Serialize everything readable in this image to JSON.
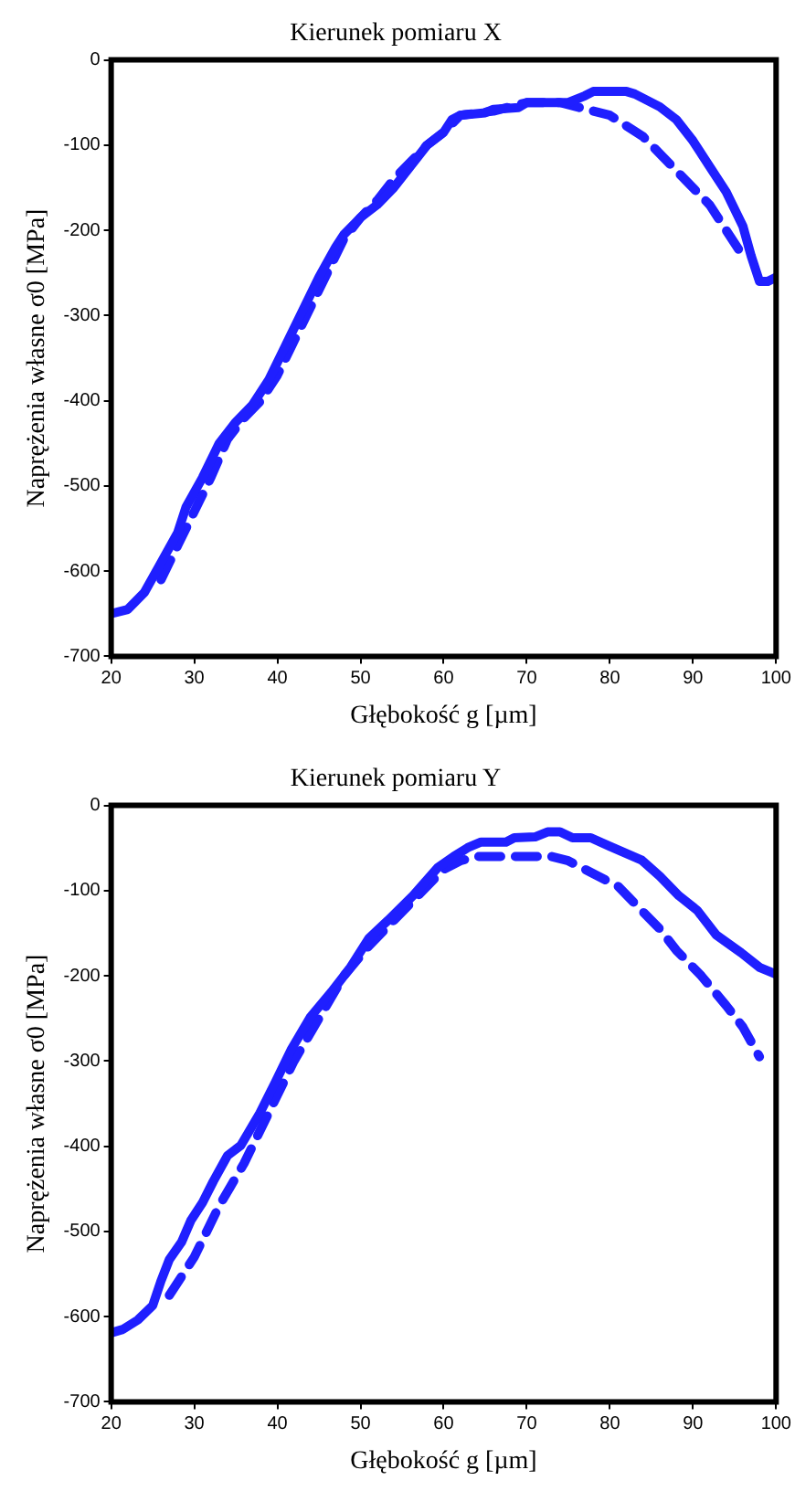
{
  "chart_data": [
    {
      "type": "line",
      "title": "Kierunek pomiaru X",
      "xlabel": "Głębokość g [µm]",
      "ylabel": "Naprężenia własne σ0 [MPa]",
      "xlim": [
        20,
        100
      ],
      "xticks": [
        20,
        30,
        40,
        50,
        60,
        70,
        80,
        90,
        100
      ],
      "ylim": [
        -700,
        0
      ],
      "yticks": [
        -700,
        -600,
        -500,
        -400,
        -300,
        -200,
        -100,
        0
      ],
      "grid": false,
      "legend": false,
      "marker": "none",
      "series": [
        {
          "color": "#1f1fff",
          "line_style": "solid",
          "x": [
            20,
            22,
            24,
            26,
            28,
            29,
            31,
            33,
            35,
            37,
            39,
            41,
            43,
            45,
            47,
            48,
            50,
            52,
            54,
            56,
            58,
            60,
            61,
            62,
            65,
            66,
            69,
            70,
            75,
            77,
            78,
            82,
            83,
            86,
            88,
            90,
            92,
            94,
            96,
            97,
            98,
            99,
            100
          ],
          "values": [
            -650,
            -645,
            -625,
            -590,
            -555,
            -525,
            -490,
            -450,
            -425,
            -405,
            -375,
            -335,
            -295,
            -255,
            -220,
            -205,
            -185,
            -170,
            -150,
            -125,
            -100,
            -85,
            -70,
            -65,
            -62,
            -58,
            -56,
            -50,
            -50,
            -42,
            -37,
            -37,
            -40,
            -55,
            -70,
            -95,
            -125,
            -155,
            -195,
            -230,
            -260,
            -260,
            -255
          ]
        },
        {
          "color": "#1f1fff",
          "line_style": "dashed",
          "x": [
            26,
            28,
            30,
            32,
            34,
            36,
            38,
            40,
            42,
            44,
            46,
            48,
            50,
            52,
            54,
            56,
            58,
            60,
            62,
            66,
            70,
            74,
            76,
            78,
            80,
            84,
            88,
            90,
            92,
            94,
            96
          ],
          "values": [
            -610,
            -570,
            -530,
            -490,
            -445,
            -420,
            -400,
            -370,
            -330,
            -290,
            -250,
            -210,
            -185,
            -165,
            -140,
            -120,
            -100,
            -85,
            -65,
            -60,
            -50,
            -50,
            -55,
            -60,
            -65,
            -90,
            -130,
            -150,
            -170,
            -200,
            -230
          ]
        }
      ]
    },
    {
      "type": "line",
      "title": "Kierunek pomiaru Y",
      "xlabel": "Głębokość g [µm]",
      "ylabel": "Naprężenia własne σ0 [MPa]",
      "xlim": [
        20,
        100
      ],
      "xticks": [
        20,
        30,
        40,
        50,
        60,
        70,
        80,
        90,
        100
      ],
      "ylim": [
        -700,
        0
      ],
      "yticks": [
        -700,
        -600,
        -500,
        -400,
        -300,
        -200,
        -100,
        0
      ],
      "grid": false,
      "legend": false,
      "marker": "none",
      "series": [
        {
          "color": "#1f1fff",
          "line_style": "solid",
          "x": [
            20,
            21.4,
            23.2,
            25,
            26,
            27,
            28.5,
            29.6,
            31,
            32.3,
            34,
            35.6,
            37.9,
            39.8,
            41.7,
            44,
            46.5,
            48.8,
            51,
            53.3,
            56.3,
            59.3,
            61.2,
            63,
            64.5,
            67.5,
            68.5,
            71,
            72.5,
            74,
            75.5,
            77.7,
            80,
            83.8,
            86,
            88.3,
            90.5,
            92.8,
            95.8,
            98,
            100
          ],
          "values": [
            -619,
            -615,
            -604,
            -587,
            -558,
            -533,
            -512,
            -487,
            -466,
            -441,
            -411,
            -399,
            -361,
            -324,
            -286,
            -248,
            -219,
            -190,
            -156,
            -135,
            -106,
            -73,
            -60,
            -49,
            -43,
            -43,
            -38,
            -37,
            -31,
            -31,
            -38,
            -38,
            -48,
            -64,
            -83,
            -106,
            -123,
            -152,
            -173,
            -190,
            -198
          ]
        },
        {
          "color": "#1f1fff",
          "line_style": "dashed",
          "x": [
            27,
            30,
            33,
            36,
            39,
            42,
            45,
            48,
            51,
            54,
            57,
            60,
            62,
            64,
            73,
            75,
            78,
            81,
            84,
            86,
            88,
            91,
            94,
            96,
            98
          ],
          "values": [
            -575,
            -530,
            -470,
            -420,
            -360,
            -300,
            -250,
            -200,
            -165,
            -135,
            -105,
            -75,
            -65,
            -60,
            -60,
            -65,
            -80,
            -95,
            -125,
            -145,
            -170,
            -200,
            -235,
            -260,
            -295
          ]
        }
      ]
    }
  ]
}
